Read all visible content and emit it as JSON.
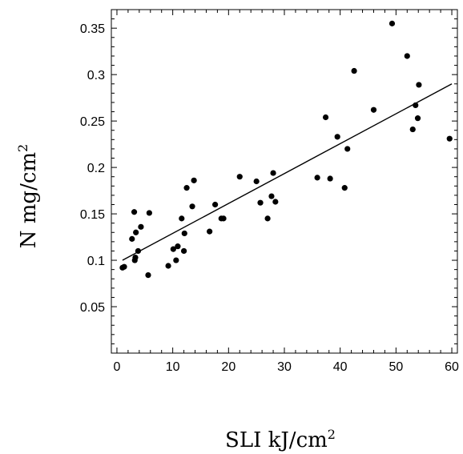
{
  "chart_data": {
    "type": "scatter",
    "title": "",
    "xlabel": "SLI kJ/cm",
    "xlabel_sup": "2",
    "ylabel": "N mg/cm",
    "ylabel_sup": "2",
    "xlim": [
      -1,
      61
    ],
    "ylim": [
      0.0,
      0.37
    ],
    "xticks": [
      0,
      10,
      20,
      30,
      40,
      50,
      60
    ],
    "xtick_labels": [
      "0",
      "10",
      "20",
      "30",
      "40",
      "50",
      "60"
    ],
    "yticks": [
      0.05,
      0.1,
      0.15,
      0.2,
      0.25,
      0.3,
      0.35
    ],
    "ytick_labels": [
      "0.05",
      "0.1",
      "0.15",
      "0.2",
      "0.25",
      "0.3",
      "0.35"
    ],
    "grid": false,
    "series": [
      {
        "type": "scatter",
        "points": [
          [
            1.0,
            0.092
          ],
          [
            1.3,
            0.093
          ],
          [
            2.7,
            0.123
          ],
          [
            3.1,
            0.152
          ],
          [
            3.2,
            0.1
          ],
          [
            3.3,
            0.103
          ],
          [
            3.4,
            0.13
          ],
          [
            3.8,
            0.11
          ],
          [
            4.3,
            0.136
          ],
          [
            5.6,
            0.084
          ],
          [
            5.8,
            0.151
          ],
          [
            9.2,
            0.094
          ],
          [
            10.1,
            0.112
          ],
          [
            10.6,
            0.1
          ],
          [
            10.9,
            0.115
          ],
          [
            11.6,
            0.145
          ],
          [
            12.0,
            0.11
          ],
          [
            12.1,
            0.129
          ],
          [
            12.5,
            0.178
          ],
          [
            13.5,
            0.158
          ],
          [
            13.8,
            0.186
          ],
          [
            16.6,
            0.131
          ],
          [
            17.6,
            0.16
          ],
          [
            18.7,
            0.145
          ],
          [
            19.1,
            0.145
          ],
          [
            22.0,
            0.19
          ],
          [
            25.0,
            0.185
          ],
          [
            25.7,
            0.162
          ],
          [
            27.0,
            0.145
          ],
          [
            27.7,
            0.169
          ],
          [
            28.0,
            0.194
          ],
          [
            28.4,
            0.163
          ],
          [
            35.9,
            0.189
          ],
          [
            37.4,
            0.254
          ],
          [
            38.2,
            0.188
          ],
          [
            39.5,
            0.233
          ],
          [
            40.8,
            0.178
          ],
          [
            41.3,
            0.22
          ],
          [
            42.5,
            0.304
          ],
          [
            46.0,
            0.262
          ],
          [
            49.3,
            0.355
          ],
          [
            52.0,
            0.32
          ],
          [
            53.0,
            0.241
          ],
          [
            53.5,
            0.267
          ],
          [
            53.9,
            0.253
          ],
          [
            54.1,
            0.289
          ],
          [
            59.6,
            0.231
          ]
        ]
      },
      {
        "type": "line",
        "name": "",
        "points": [
          [
            1.0,
            0.1
          ],
          [
            60.0,
            0.29
          ]
        ]
      }
    ]
  }
}
